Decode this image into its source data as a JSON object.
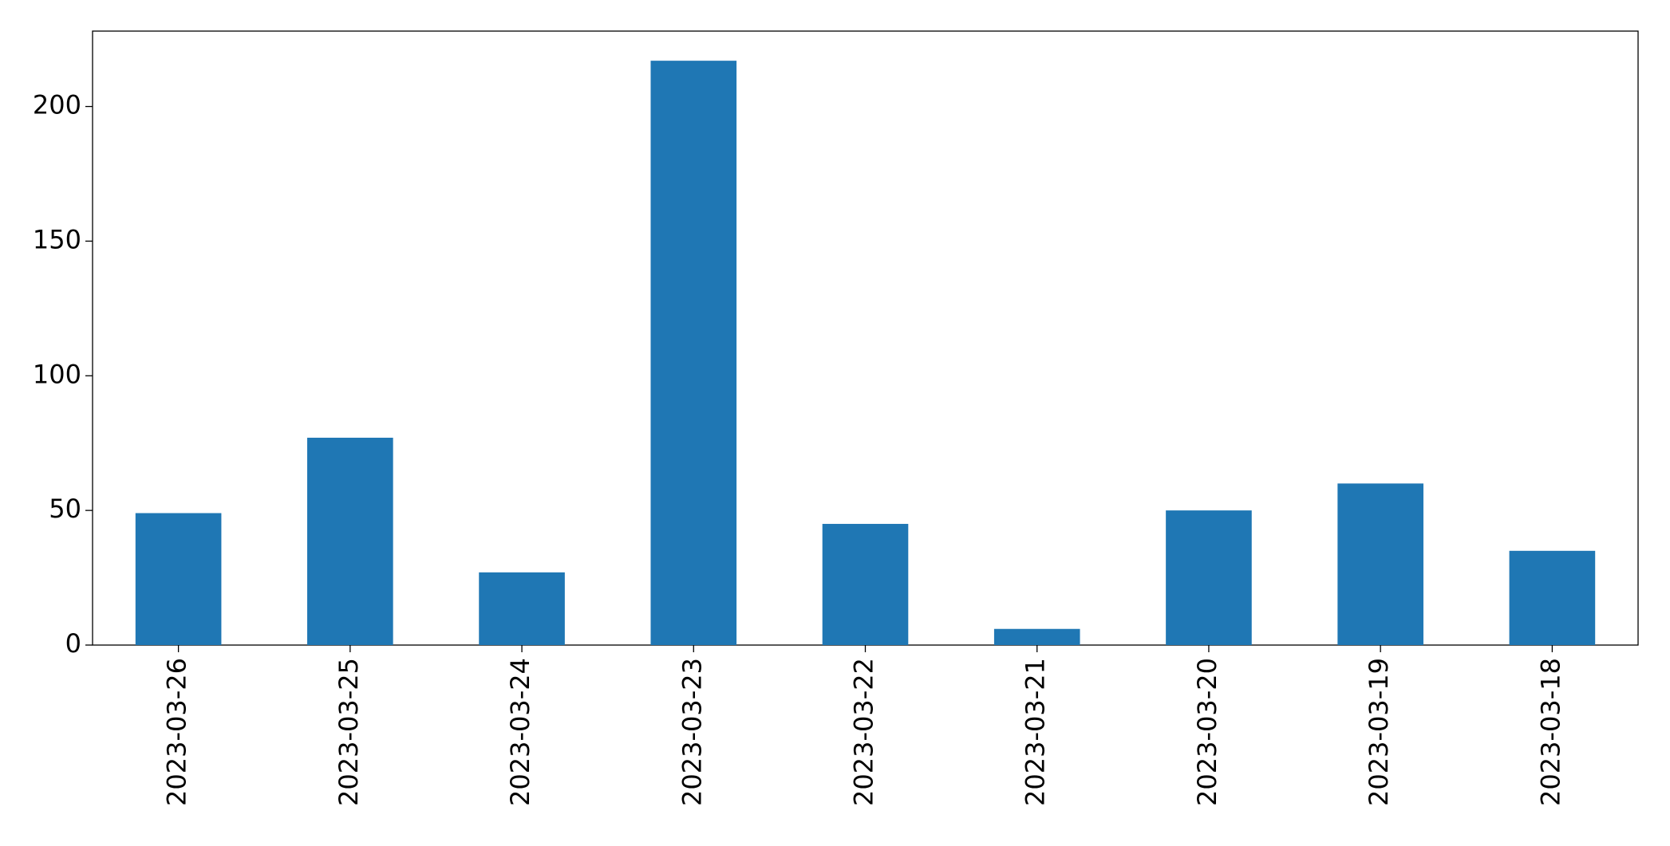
{
  "chart_data": {
    "type": "bar",
    "categories": [
      "2023-03-26",
      "2023-03-25",
      "2023-03-24",
      "2023-03-23",
      "2023-03-22",
      "2023-03-21",
      "2023-03-20",
      "2023-03-19",
      "2023-03-18"
    ],
    "values": [
      49,
      77,
      27,
      217,
      45,
      6,
      50,
      60,
      35
    ],
    "color": "#1f77b4",
    "ylim": [
      0,
      228
    ],
    "yticks": [
      0,
      50,
      100,
      150,
      200
    ],
    "grid": false
  }
}
